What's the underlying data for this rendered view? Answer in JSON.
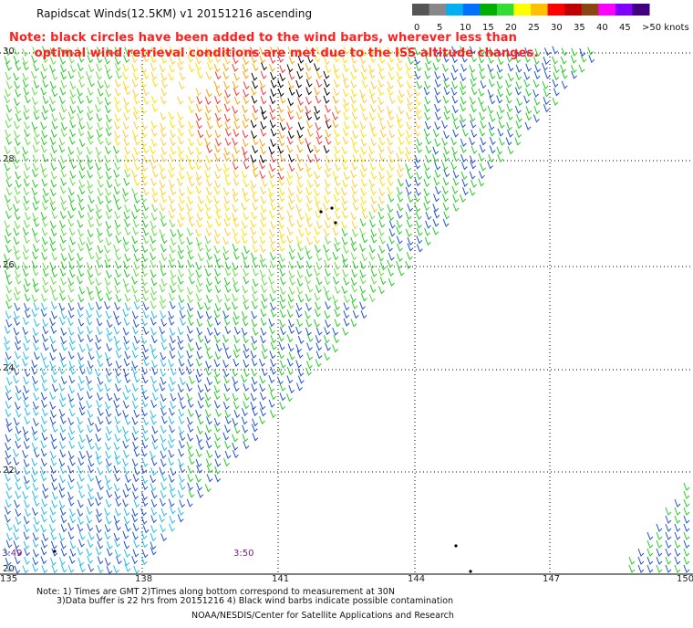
{
  "title": "Rapidscat Winds(12.5KM) v1 20151216 ascending",
  "note_line1": "Note: black circles have been added to the wind barbs, wherever less than",
  "note_line2": "      optimal wind retrieval conditions are met due to the ISS altitude changes.",
  "legend": {
    "labels": [
      "0",
      "5",
      "10",
      "15",
      "20",
      "25",
      "30",
      "35",
      "40",
      "45",
      ">50 knots"
    ],
    "colors": [
      "#555555",
      "#888888",
      "#00b0f0",
      "#0070ff",
      "#00b000",
      "#33dd33",
      "#ffff00",
      "#ffc000",
      "#ff0000",
      "#c00000",
      "#8b4513",
      "#ff00ff",
      "#8000ff",
      "#400080"
    ]
  },
  "map": {
    "lat_labels": [
      "30",
      "28",
      "26",
      "24",
      "22",
      "20"
    ],
    "lon_labels": [
      "135",
      "138",
      "141",
      "144",
      "147",
      "150"
    ],
    "time_labels": [
      "3:49",
      "3:50"
    ]
  },
  "footer": {
    "line1": "Note: 1) Times are GMT 2)Times along bottom correspond to measurement at 30N",
    "line2": "3)Data buffer is 22 hrs from 20151216 4) Black wind barbs indicate possible contamination",
    "line3": "NOAA/NESDIS/Center for Satellite Applications and Research"
  }
}
